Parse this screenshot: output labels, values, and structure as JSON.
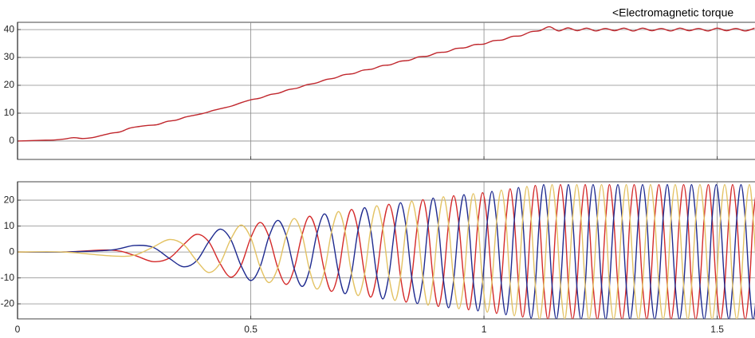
{
  "chart_data": [
    {
      "type": "line",
      "title": "<Electromagnetic torque",
      "x": [
        0,
        0.02,
        0.04,
        0.06,
        0.08,
        0.1,
        0.12,
        0.14,
        0.16,
        0.18,
        0.2,
        0.22,
        0.24,
        0.26,
        0.28,
        0.3,
        0.32,
        0.34,
        0.36,
        0.38,
        0.4,
        0.42,
        0.44,
        0.46,
        0.48,
        0.5,
        0.52,
        0.54,
        0.56,
        0.58,
        0.6,
        0.62,
        0.64,
        0.66,
        0.68,
        0.7,
        0.72,
        0.74,
        0.76,
        0.78,
        0.8,
        0.82,
        0.84,
        0.86,
        0.88,
        0.9,
        0.92,
        0.94,
        0.96,
        0.98,
        1.0,
        1.02,
        1.04,
        1.06,
        1.08,
        1.1,
        1.12,
        1.14,
        1.16,
        1.18,
        1.2,
        1.22,
        1.24,
        1.26,
        1.28,
        1.3,
        1.32,
        1.34,
        1.36,
        1.38,
        1.4,
        1.42,
        1.44,
        1.46,
        1.48,
        1.5,
        1.52,
        1.54,
        1.56,
        1.58
      ],
      "series": [
        {
          "color": "#c0272d",
          "values": [
            0,
            0.1,
            0.2,
            0.3,
            0.4,
            0.7,
            1.2,
            0.9,
            1.2,
            2,
            2.8,
            3.3,
            4.6,
            5.2,
            5.6,
            5.9,
            7,
            7.5,
            8.6,
            9.3,
            10,
            11,
            11.8,
            12.6,
            13.8,
            14.8,
            15.4,
            16.6,
            17.2,
            18.4,
            19,
            20.2,
            20.8,
            22,
            22.6,
            23.8,
            24.2,
            25.4,
            25.8,
            27,
            27.4,
            28.6,
            29,
            30.2,
            30.5,
            31.7,
            32,
            33.2,
            33.5,
            34.6,
            34.8,
            36,
            36.3,
            37.5,
            37.8,
            39.2,
            39.6,
            41,
            39.5,
            40.6,
            39.6,
            40.5,
            39.5,
            40.4,
            39.6,
            40.5,
            39.5,
            40.5,
            39.6,
            40.4,
            39.5,
            40.5,
            39.6,
            40.4,
            39.5,
            40.5,
            39.6,
            40.4,
            39.5,
            40.5
          ]
        }
      ],
      "xlim": [
        0,
        1.581
      ],
      "xticks": [
        0,
        0.5,
        1,
        1.5
      ],
      "xtick_labels": false,
      "ylim": [
        -6.6,
        42.6
      ],
      "yticks": [
        0,
        10,
        20,
        30,
        40
      ],
      "grid": true
    },
    {
      "type": "line",
      "x": [
        0,
        0.1,
        0.2,
        0.25,
        0.29,
        0.325,
        0.356,
        0.384,
        0.41,
        0.434,
        0.457,
        0.479,
        0.5,
        0.52,
        0.539,
        0.558,
        0.576,
        0.593,
        0.61,
        0.626,
        0.642,
        0.658,
        0.673,
        0.688,
        0.702,
        0.716,
        0.73,
        0.744,
        0.757,
        0.77,
        0.783,
        0.796,
        0.809,
        0.821,
        0.833,
        0.845,
        0.857,
        0.869,
        0.88,
        0.891,
        0.902,
        0.913,
        0.924,
        0.935,
        0.946,
        0.957,
        0.967,
        0.977,
        0.987,
        0.997,
        1.007,
        1.017,
        1.027,
        1.037,
        1.047,
        1.056,
        1.065,
        1.074,
        1.083,
        1.092,
        1.101,
        1.11,
        1.119,
        1.128,
        1.137,
        1.146,
        1.155,
        1.164,
        1.173,
        1.181,
        1.19,
        1.199,
        1.208,
        1.217,
        1.225,
        1.234,
        1.243,
        1.252,
        1.261,
        1.269,
        1.278,
        1.287,
        1.296,
        1.305,
        1.313,
        1.322,
        1.331,
        1.34,
        1.349,
        1.357,
        1.366,
        1.375,
        1.384,
        1.393,
        1.401,
        1.41,
        1.419,
        1.428,
        1.437,
        1.445,
        1.454,
        1.463,
        1.472,
        1.481,
        1.489,
        1.498,
        1.507,
        1.516,
        1.525,
        1.533,
        1.542,
        1.551,
        1.56,
        1.569,
        1.577,
        1.586
      ],
      "series": [
        {
          "color": "#d42a2a",
          "values": [
            0,
            0,
            0.75,
            -1.25,
            -3.7,
            -2.4,
            2.85,
            6.8,
            3.95,
            -4.4,
            -9.7,
            -5.2,
            5.5,
            11.4,
            5.9,
            -6.1,
            -12.5,
            -6.45,
            6.65,
            13.8,
            7.15,
            -7.35,
            -15.2,
            -7.8,
            8.05,
            16.4,
            8.4,
            -8.55,
            -17.4,
            -8.9,
            9.05,
            18.4,
            9.35,
            -9.5,
            -19.3,
            -9.8,
            9.95,
            20.2,
            10.25,
            -10.4,
            -21,
            -10.65,
            10.75,
            21.7,
            10.95,
            -11.05,
            -22.3,
            -11.25,
            11.35,
            22.9,
            11.6,
            -11.7,
            -23.7,
            -11.95,
            12.1,
            24.4,
            12.3,
            -12.45,
            -25.1,
            -12.65,
            12.75,
            25.7,
            12.95,
            -13,
            -26,
            -13,
            13,
            26,
            13,
            -13,
            -26,
            -13,
            13,
            26,
            13,
            -13,
            -26,
            -13,
            13,
            26,
            13,
            -13,
            -26,
            -13,
            13,
            26,
            13,
            -13,
            -26,
            -13,
            13,
            26,
            13,
            -13,
            -26,
            -13,
            13,
            26,
            13,
            -13,
            -26,
            -13,
            13,
            26,
            13,
            -13,
            -26,
            -13,
            13,
            26,
            13,
            -13,
            -26,
            -13,
            13,
            26
          ]
        },
        {
          "color": "#1e2a8f",
          "values": [
            0,
            0,
            0.75,
            2.5,
            1.85,
            -2.4,
            -5.7,
            -3.4,
            3.95,
            8.8,
            4.85,
            -5.2,
            -11,
            -5.7,
            5.9,
            12.2,
            6.25,
            -6.45,
            -13.3,
            -6.9,
            7.15,
            14.7,
            7.6,
            -7.8,
            -16.1,
            -8.2,
            8.4,
            17.1,
            8.7,
            -8.9,
            -18.1,
            -9.2,
            9.35,
            19,
            9.65,
            -9.8,
            -19.9,
            -10.1,
            10.25,
            20.8,
            10.5,
            -10.65,
            -21.5,
            -10.85,
            10.95,
            22.1,
            11.15,
            -11.25,
            -22.7,
            -11.45,
            11.6,
            23.4,
            11.85,
            -11.95,
            -24.2,
            -12.2,
            12.3,
            24.9,
            12.55,
            -12.65,
            -25.5,
            -12.85,
            12.95,
            26,
            13,
            -13,
            -26,
            -13,
            13,
            26,
            13,
            -13,
            -26,
            -13,
            13,
            26,
            13,
            -13,
            -26,
            -13,
            13,
            26,
            13,
            -13,
            -26,
            -13,
            13,
            26,
            13,
            -13,
            -26,
            -13,
            13,
            26,
            13,
            -13,
            -26,
            -13,
            13,
            26,
            13,
            -13,
            -26,
            -13,
            13,
            26,
            13,
            -13,
            -26,
            -13,
            13,
            26,
            13,
            -13,
            -26,
            -13
          ]
        },
        {
          "color": "#e3c263",
          "values": [
            0,
            0,
            -1.5,
            -1.25,
            1.85,
            4.8,
            2.85,
            -3.4,
            -7.9,
            -4.4,
            4.85,
            10.4,
            5.5,
            -5.7,
            -11.8,
            -6.1,
            6.25,
            12.9,
            6.65,
            -6.9,
            -14.3,
            -7.35,
            7.6,
            15.6,
            8.05,
            -8.2,
            -16.8,
            -8.55,
            8.7,
            17.8,
            9.05,
            -9.2,
            -18.7,
            -9.5,
            9.65,
            19.6,
            9.95,
            -10.1,
            -20.5,
            -10.4,
            10.5,
            21.3,
            10.75,
            -10.85,
            -21.9,
            -11.05,
            11.15,
            22.5,
            11.35,
            -11.45,
            -23.2,
            -11.7,
            11.85,
            23.9,
            12.1,
            -12.2,
            -24.6,
            -12.45,
            12.55,
            25.3,
            12.75,
            -12.85,
            -25.9,
            -13,
            13,
            26,
            13,
            -13,
            -26,
            -13,
            13,
            26,
            13,
            -13,
            -26,
            -13,
            13,
            26,
            13,
            -13,
            -26,
            -13,
            13,
            26,
            13,
            -13,
            -26,
            -13,
            13,
            26,
            13,
            -13,
            -26,
            -13,
            13,
            26,
            13,
            -13,
            -26,
            -13,
            13,
            26,
            13,
            -13,
            -26,
            -13,
            13,
            26,
            13,
            -13,
            -26,
            -13,
            13,
            26,
            13,
            -13
          ]
        }
      ],
      "xlim": [
        0,
        1.581
      ],
      "xticks": [
        0,
        0.5,
        1,
        1.5
      ],
      "xtick_labels": true,
      "ylim": [
        -25.8,
        27.1
      ],
      "yticks": [
        -20,
        -10,
        0,
        10,
        20
      ],
      "grid": true
    }
  ]
}
